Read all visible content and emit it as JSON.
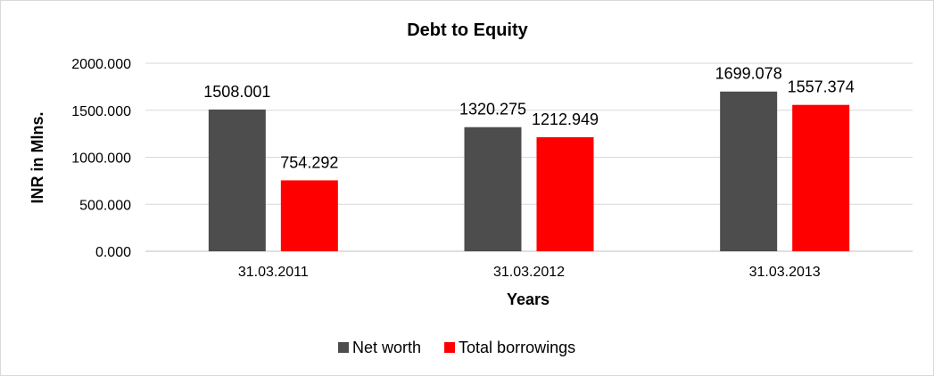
{
  "chart_data": {
    "type": "bar",
    "title": "Debt to Equity",
    "xlabel": "Years",
    "ylabel": "INR in Mlns.",
    "categories": [
      "31.03.2011",
      "31.03.2012",
      "31.03.2013"
    ],
    "series": [
      {
        "name": "Net worth",
        "color": "#4d4d4d",
        "values": [
          1508.001,
          1320.275,
          1699.078
        ],
        "labels": [
          "1508.001",
          "1320.275",
          "1699.078"
        ]
      },
      {
        "name": "Total borrowings",
        "color": "#ff0000",
        "values": [
          754.292,
          1212.949,
          1557.374
        ],
        "labels": [
          "754.292",
          "1212.949",
          "1557.374"
        ]
      }
    ],
    "ylim": [
      0,
      2000
    ],
    "yticks": [
      0,
      500,
      1000,
      1500,
      2000
    ],
    "ytick_labels": [
      "0.000",
      "500.000",
      "1000.000",
      "1500.000",
      "2000.000"
    ],
    "grid": true,
    "gridline_color": "#d9d9d9",
    "legend_position": "bottom"
  }
}
